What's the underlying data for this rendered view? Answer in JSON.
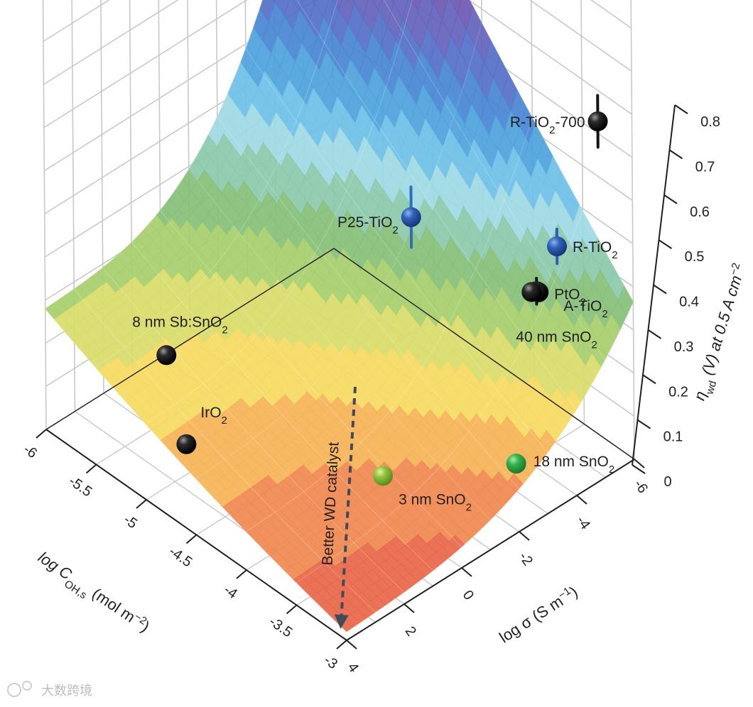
{
  "chart_data": {
    "type": "scatter",
    "subtype": "3d-surface-with-points",
    "axes": {
      "x": {
        "label_main": "log C",
        "label_sub": "OH,s",
        "label_units": "(mol m",
        "label_exp": "−2",
        "label_close": ")",
        "ticks": [
          "-6",
          "-5.5",
          "-5",
          "-4.5",
          "-4",
          "-3.5",
          "-3"
        ],
        "range": [
          -6,
          -3
        ]
      },
      "y": {
        "label_main": "log σ (S m",
        "label_exp": "−1",
        "label_close": ")",
        "ticks": [
          "-6",
          "-4",
          "-2",
          "0",
          "2",
          "4"
        ],
        "range": [
          -6,
          4
        ]
      },
      "z": {
        "label_main": "η",
        "label_sub": "wd",
        "label_rest": " (V) at 0.5 A cm",
        "label_exp": "−2",
        "ticks": [
          "0",
          "0.1",
          "0.2",
          "0.3",
          "0.4",
          "0.5",
          "0.6",
          "0.7",
          "0.8"
        ],
        "range": [
          0,
          0.8
        ]
      }
    },
    "surface_colormap": [
      "#e8684a",
      "#f08a52",
      "#f6b457",
      "#f5da62",
      "#d8dd6a",
      "#a7cf6e",
      "#86c07a",
      "#8cc9ab",
      "#9fd9e4",
      "#6fc1e8",
      "#4fa2dd",
      "#4a86d4",
      "#5670c8",
      "#6563bb",
      "#6f59b3"
    ],
    "series": [
      {
        "name": "R-TiO2-700",
        "label": "R-TiO",
        "sub": "2",
        "suffix": "-700",
        "color": "#111111",
        "logC": -3.4,
        "logSigma": -6.2,
        "eta": 0.71,
        "error": 0.06
      },
      {
        "name": "R-TiO2",
        "label": "R-TiO",
        "sub": "2",
        "suffix": "",
        "color": "#2f5db3",
        "logC": -3.5,
        "logSigma": -5.1,
        "eta": 0.45,
        "error": 0.04
      },
      {
        "name": "PtO2",
        "label": "PtO",
        "sub": "2",
        "suffix": "",
        "color": "#111111",
        "logC": -3.6,
        "logSigma": -4.8,
        "eta": 0.34,
        "error": 0.02
      },
      {
        "name": "A-TiO2",
        "label": "A-TiO",
        "sub": "2",
        "suffix": "",
        "color": "#111111",
        "logC": -3.65,
        "logSigma": -4.9,
        "eta": 0.33,
        "error": 0.03
      },
      {
        "name": "40 nm SnO2",
        "label": "40 nm SnO",
        "sub": "2",
        "suffix": "",
        "color": "#111111",
        "logC": -3.7,
        "logSigma": -4.9,
        "eta": 0.32,
        "error": 0.0
      },
      {
        "name": "P25-TiO2",
        "label": "P25-TiO",
        "sub": "2",
        "suffix": "",
        "color": "#2f6fb8",
        "logC": -4.7,
        "logSigma": -4.2,
        "eta": 0.36,
        "error": 0.07
      },
      {
        "name": "8 nm Sb:SnO2",
        "label": "8 nm Sb:SnO",
        "sub": "2",
        "suffix": "",
        "color": "#111111",
        "logC": -5.6,
        "logSigma": 1.2,
        "eta": 0.12,
        "error": 0.0
      },
      {
        "name": "IrO2",
        "label": "IrO",
        "sub": "2",
        "suffix": "",
        "color": "#111111",
        "logC": -5.0,
        "logSigma": 2.6,
        "eta": 0.07,
        "error": 0.0
      },
      {
        "name": "18 nm SnO2",
        "label": "18 nm SnO",
        "sub": "2",
        "suffix": "",
        "color": "#35b04a",
        "logC": -3.2,
        "logSigma": -2.6,
        "eta": 0.1,
        "error": 0.01
      },
      {
        "name": "3 nm SnO2",
        "label": "3 nm SnO",
        "sub": "2",
        "suffix": "",
        "color": "#8fc33f",
        "logC": -3.9,
        "logSigma": -0.4,
        "eta": 0.05,
        "error": 0.01
      }
    ],
    "annotations": [
      {
        "text": "Better WD catalyst",
        "type": "dashed-arrow",
        "color": "#3f4a5a"
      }
    ]
  },
  "watermark": "大数跨境"
}
